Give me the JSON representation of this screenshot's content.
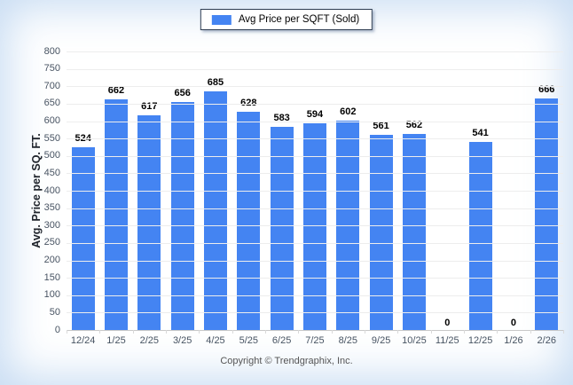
{
  "legend": {
    "label": "Avg Price per SQFT (Sold)",
    "swatch_color": "#4484f2"
  },
  "footer": {
    "copyright": "Copyright © Trendgraphix, Inc."
  },
  "colors": {
    "bar": "#4484f2",
    "axis_text": "#475362",
    "value_label": "#000000",
    "gridline": "#ededed",
    "baseline": "#c9c9c9",
    "legend_border": "#2e3d52",
    "frame_glow": "#a8c8eb",
    "footer_text": "#555555"
  },
  "chart_data": {
    "type": "bar",
    "title": "Avg Price per SQFT (Sold)",
    "categories": [
      "12/24",
      "1/25",
      "2/25",
      "3/25",
      "4/25",
      "5/25",
      "6/25",
      "7/25",
      "8/25",
      "9/25",
      "10/25",
      "11/25",
      "12/25",
      "1/26",
      "2/26"
    ],
    "values": [
      524,
      662,
      617,
      656,
      685,
      628,
      583,
      594,
      602,
      561,
      562,
      0,
      541,
      0,
      666
    ],
    "xlabel": "",
    "ylabel": "Avg. Price per SQ. FT.",
    "ylim": [
      0,
      800
    ],
    "ytick_step": 50,
    "grid": "horizontal",
    "legend_position": "top-center",
    "value_labels": true,
    "bar_color": "#4484f2"
  }
}
